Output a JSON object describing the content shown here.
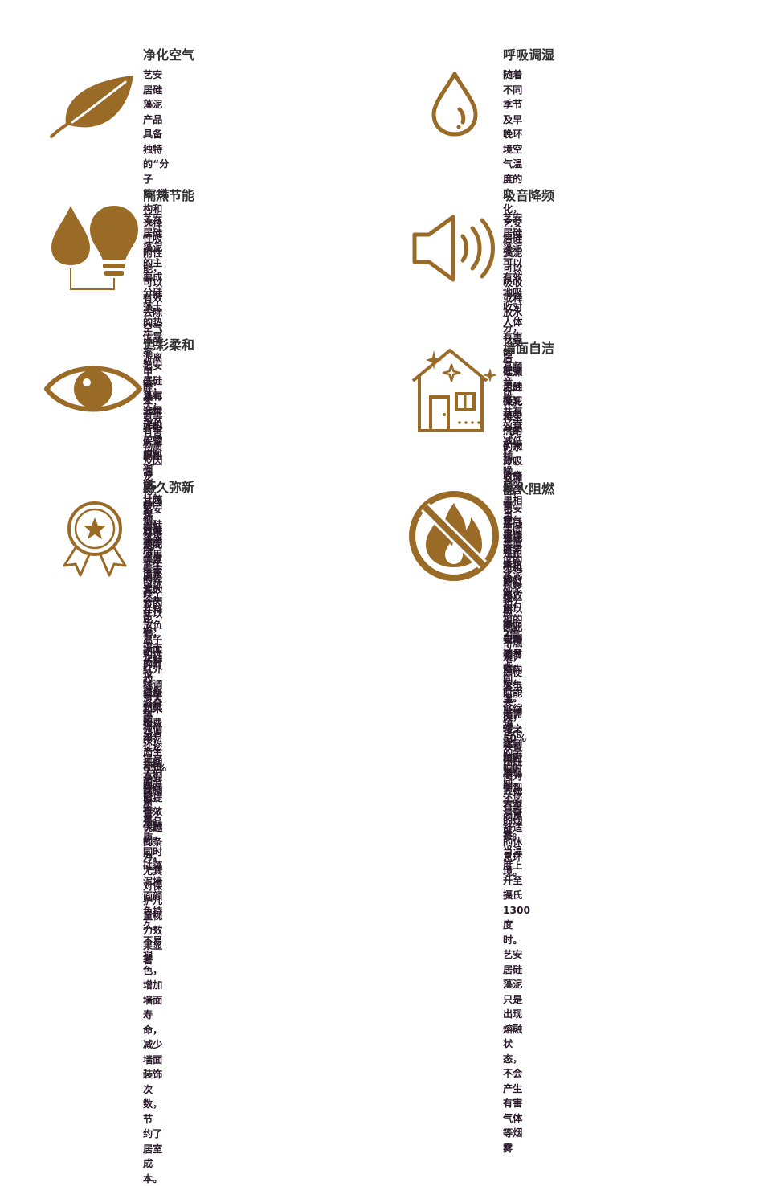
{
  "colors": {
    "accent": "#9a6a27",
    "title": "#333333",
    "text": "#2a1a2a"
  },
  "features": [
    {
      "icon": "leaf-icon",
      "title": "净化空气",
      "lines": [
        "艺安居硅藻泥产品具备独特的“分子筛”结构和",
        "选择性吸附性能，可以有效去除空气中的游离甲",
        "醛，苯，氨等有害物质及因宠物，吸烟，垃圾所",
        "产生的异味，并释放负离子和远红外线调节人体",
        "微循环，提高人们睡眠质量。"
      ]
    },
    {
      "icon": "water-drop-icon",
      "title": "呼吸调湿",
      "lines": [
        "随着不同季节及早晚环境空气温度的变化，",
        "艺安居硅藻泥可以吸收或释放水分，艺安居",
        "硅藻泥的微孔将空气中的水分吸收储备，当",
        "空气干燥时，再将水分释放出来，自动调节",
        "室内空气湿度，使之达到相对平衡。"
      ]
    },
    {
      "icon": "drop-and-bulb-icon",
      "title": "隔热节能",
      "lines": [
        "艺安居硅藻泥的主要成分硅藻土的热传导率",
        "很低，具有非常好的保温隔热性能，其隔热",
        "效果是同等厚度水泥砂浆的6倍。大大的节约",
        "电能和采暖费用，为65%的节能提供了优越",
        "的条件。"
      ]
    },
    {
      "icon": "speaker-icon",
      "title": "吸音降频",
      "lines": [
        "艺安居硅藻泥可以有效地吸收对人体有害的",
        "高频音段，并有效衰减低频噪。其效果相当",
        "于同等厚度的水泥砂浆和石板的2倍以上，同",
        "时能够缩短50%的余响时间，还您清謦舒适",
        "的休息环境。"
      ]
    },
    {
      "icon": "eye-icon",
      "title": "色彩柔和",
      "lines": [
        "艺安居硅藻泥选用无机矿物原料调色，让艺安",
        "居硅藻泥焕发出朴素大方的色彩，墙面反射光",
        "线自然柔和，不易产生视觉疲劳，有效保护视",
        "力，尤其对保护儿童视力效果显著"
      ]
    },
    {
      "icon": "clean-house-icon",
      "title": "墙面自洁",
      "lines": [
        "艺安居硅藻泥是天然的矿物质，自身不含重",
        "金属，不易产生静电，所以墙面表面不易落",
        "灰尘。无需打理，随时展现美观大方的风",
        "采。"
      ]
    },
    {
      "icon": "award-badge-icon",
      "title": "历久弥新",
      "lines": [
        "艺安居硅藻泥使用寿命可达二十年以上，一",
        "次性投资，终身受益。让您长期享受高端生",
        "活品质。同时硅藻泥墙面颜色持久，不易褪",
        "色，增加墙面寿命，减少墙面装饰次数，节",
        "约了居室成本。"
      ]
    },
    {
      "icon": "no-fire-icon",
      "title": "防火阻燃",
      "lines": [
        "艺安居硅藻泥是由无机材料组成，因此不燃",
        "烧，即使发生火灾，也不会冒出任何对人体",
        "有害的烟雾。当温度上升至摄氏1300度时。",
        "艺安居硅藻泥只是出现熔融状态，不会产生",
        "有害气体等烟雾"
      ]
    }
  ]
}
